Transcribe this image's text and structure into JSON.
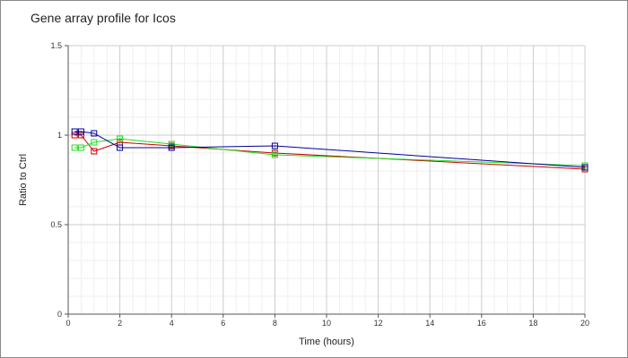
{
  "chart_data": {
    "type": "line",
    "title": "Gene array profile for Icos",
    "xlabel": "Time (hours)",
    "ylabel": "Ratio to Ctrl",
    "xlim": [
      0,
      20
    ],
    "ylim": [
      0,
      1.5
    ],
    "x_ticks": [
      "0",
      "2",
      "4",
      "6",
      "8",
      "10",
      "12",
      "14",
      "16",
      "18",
      "20"
    ],
    "y_ticks": [
      "0",
      "0.5",
      "1",
      "1.5"
    ],
    "grid": true,
    "legend": "none",
    "marker": "square",
    "series": [
      {
        "color": "#cc0000",
        "points": [
          [
            0.25,
            1.0
          ],
          [
            0.5,
            1.0
          ],
          [
            1,
            0.91
          ],
          [
            2,
            0.96
          ],
          [
            4,
            0.94
          ],
          [
            8,
            0.9
          ],
          [
            20,
            0.81
          ]
        ]
      },
      {
        "color": "#22dd22",
        "points": [
          [
            0.25,
            0.93
          ],
          [
            0.5,
            0.93
          ],
          [
            1,
            0.96
          ],
          [
            2,
            0.98
          ],
          [
            4,
            0.95
          ],
          [
            8,
            0.89
          ],
          [
            20,
            0.83
          ]
        ]
      },
      {
        "color": "#000099",
        "points": [
          [
            0.25,
            1.02
          ],
          [
            0.5,
            1.02
          ],
          [
            1,
            1.01
          ],
          [
            2,
            0.93
          ],
          [
            4,
            0.93
          ],
          [
            8,
            0.94
          ],
          [
            20,
            0.82
          ]
        ]
      }
    ]
  }
}
